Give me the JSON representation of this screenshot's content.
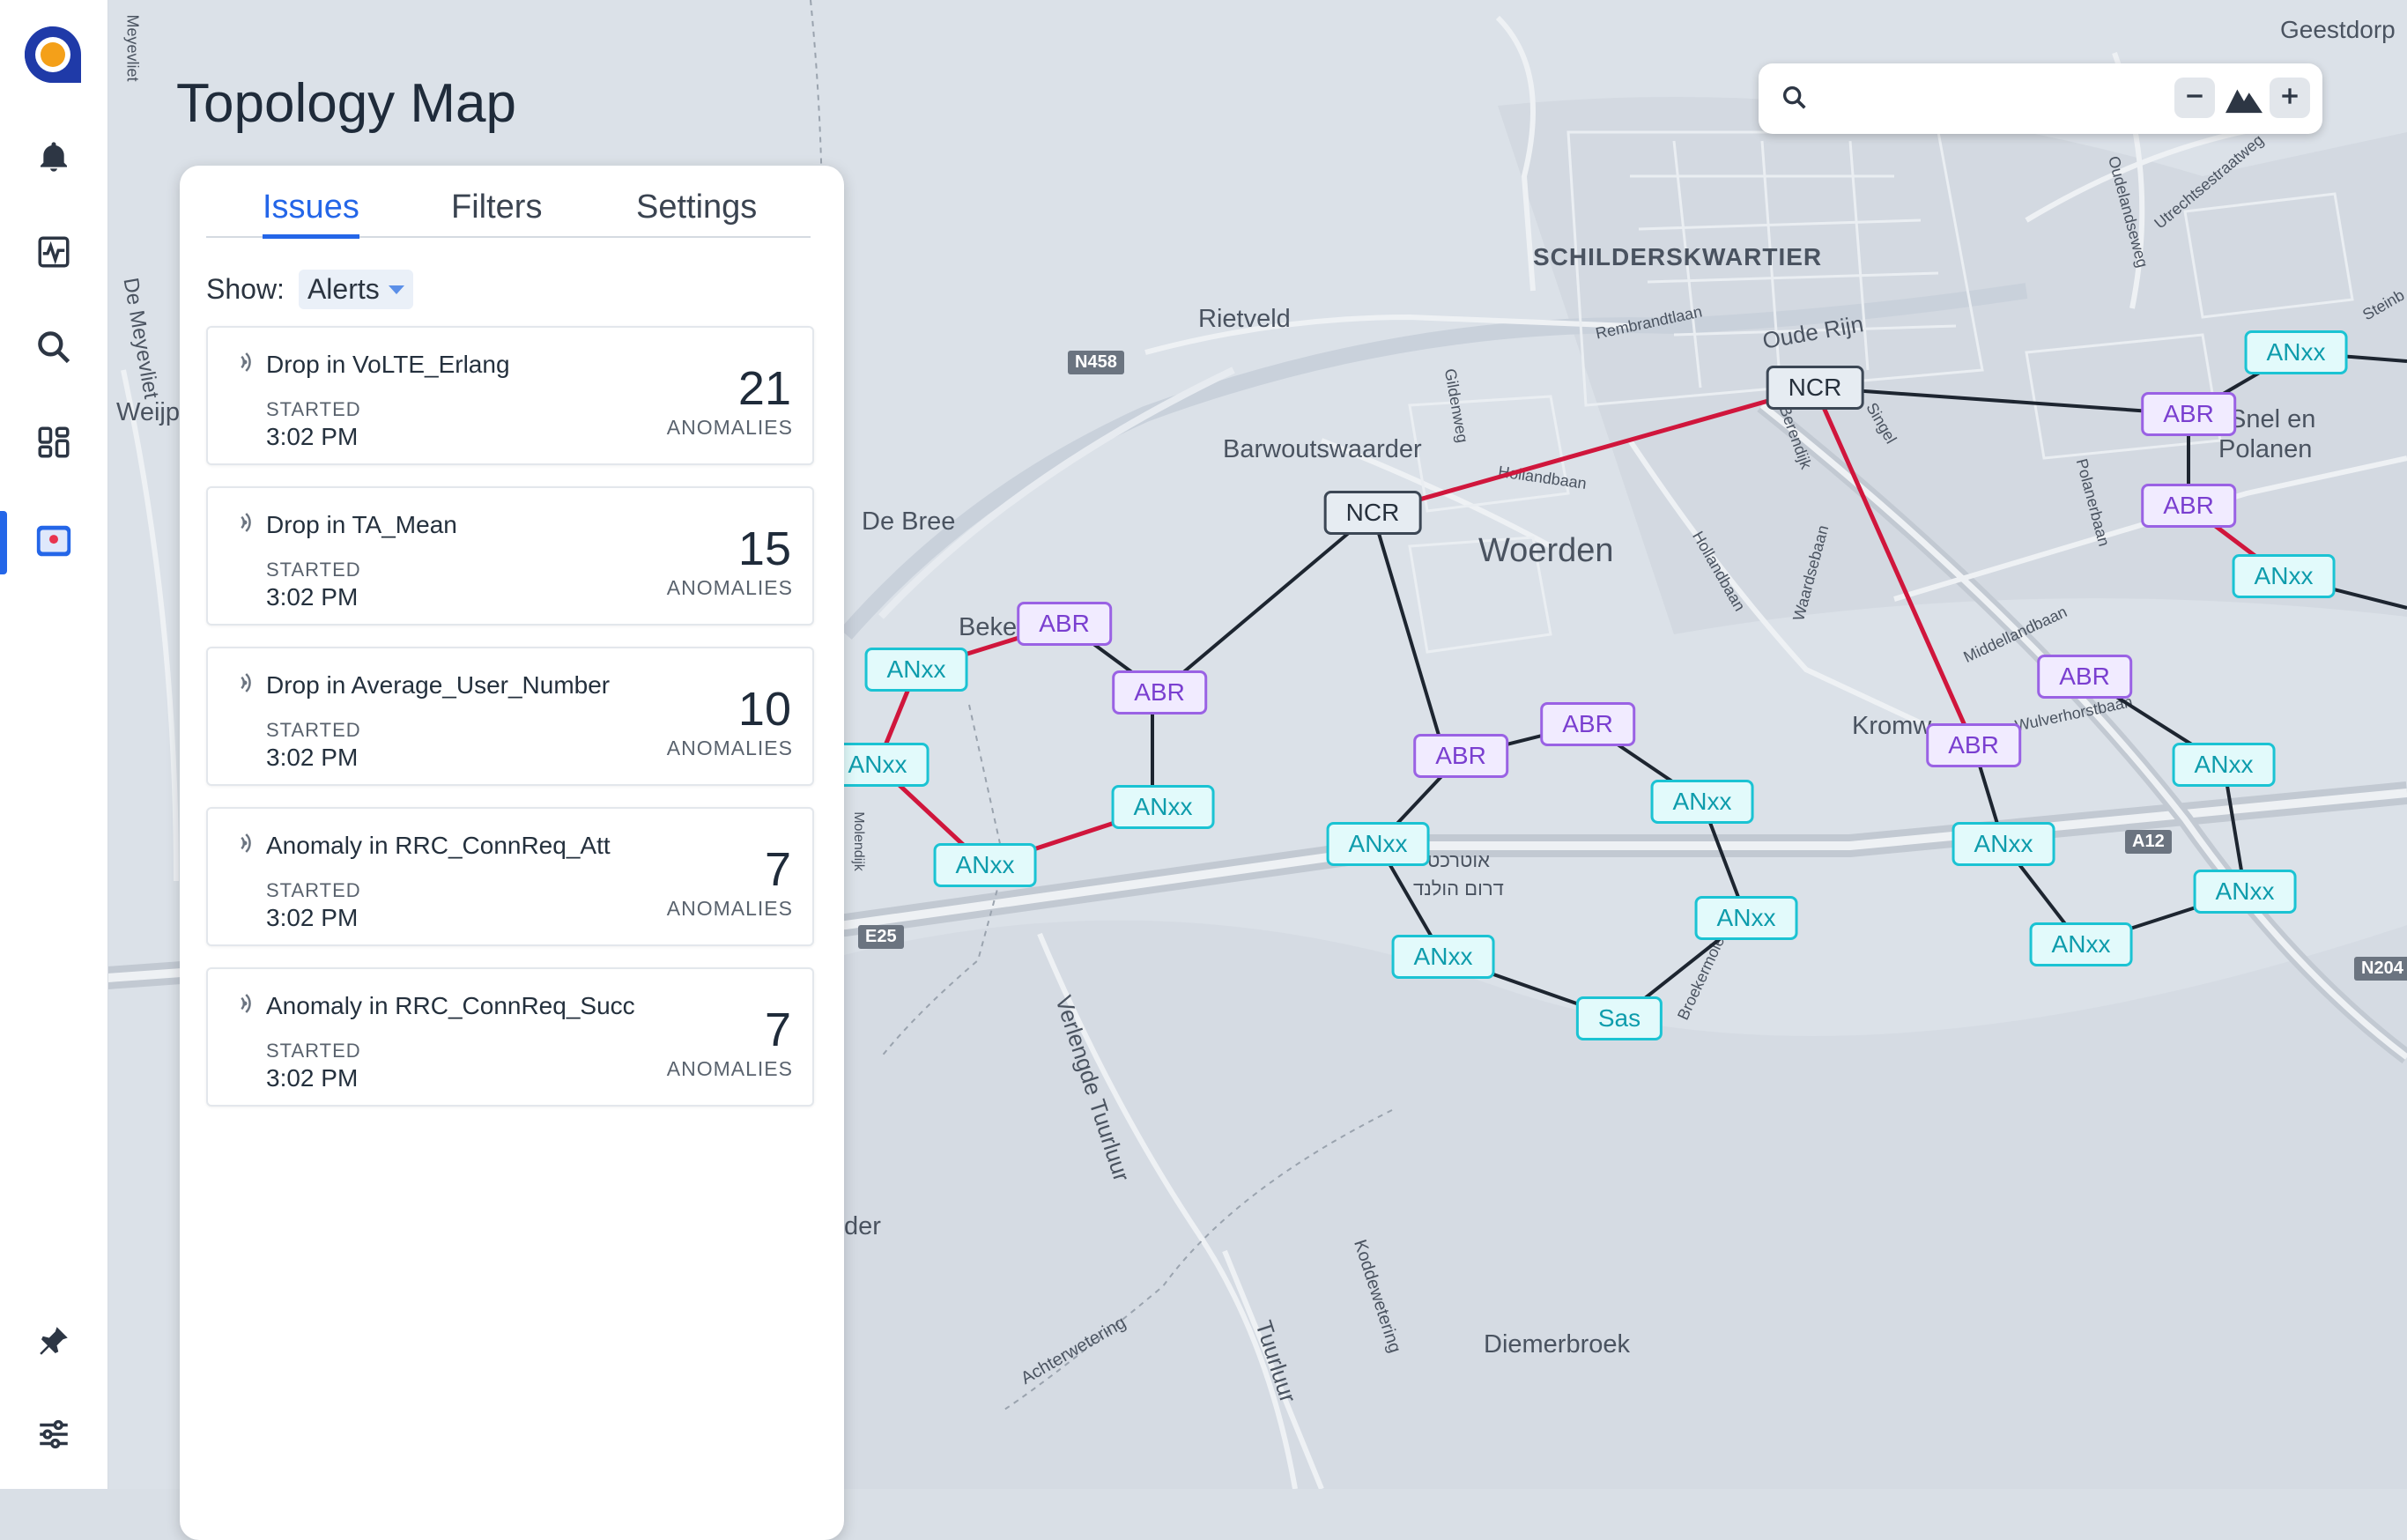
{
  "page": {
    "title": "Topology Map"
  },
  "sidebar": {
    "items": [
      {
        "name": "bell-icon"
      },
      {
        "name": "activity-icon"
      },
      {
        "name": "search-icon"
      },
      {
        "name": "dashboard-icon"
      },
      {
        "name": "map-icon",
        "active": true
      }
    ],
    "bottom": [
      {
        "name": "pin-icon"
      },
      {
        "name": "sliders-icon"
      }
    ]
  },
  "panel": {
    "tabs": [
      "Issues",
      "Filters",
      "Settings"
    ],
    "active_tab": "Issues",
    "show_label": "Show:",
    "show_value": "Alerts",
    "started_label": "STARTED",
    "count_label": "ANOMALIES",
    "issues": [
      {
        "title": "Drop in VoLTE_Erlang",
        "time": "3:02 PM",
        "count": "21"
      },
      {
        "title": "Drop in TA_Mean",
        "time": "3:02 PM",
        "count": "15"
      },
      {
        "title": "Drop in Average_User_Number",
        "time": "3:02 PM",
        "count": "10"
      },
      {
        "title": "Anomaly in RRC_ConnReq_Att",
        "time": "3:02 PM",
        "count": "7"
      },
      {
        "title": "Anomaly in RRC_ConnReq_Succ",
        "time": "3:02 PM",
        "count": "7"
      }
    ]
  },
  "search": {
    "value": "",
    "placeholder": ""
  },
  "map": {
    "labels": {
      "geestdorp": "Geestdorp",
      "schilderskwartier": "SCHILDERSKWARTIER",
      "rietveld": "Rietveld",
      "oude_rijn": "Oude Rijn",
      "barwoutswaarder": "Barwoutswaarder",
      "woerden": "Woerden",
      "de_bree": "De Bree",
      "beke": "Beke",
      "snel_en": "Snel en",
      "polanen": "Polanen",
      "kromw": "Kromw",
      "weijp": "Weijp",
      "de_meyevliet": "De Meyevliet",
      "meyevliet": "Meyevliet",
      "verlengde_tuurluur": "Verlengde Tuurluur",
      "tuurluur": "Tuurluur",
      "koddewetering": "Koddewetering",
      "achterwetering": "Achterwetering",
      "diemerbroek": "Diemerbroek",
      "der": "der",
      "rembrandtlaan": "Rembrandtlaan",
      "hollandbaan": "Hollandbaan",
      "hollandbaan2": "Hollandbaan",
      "gildenweg": "Gildenweg",
      "waardsebaan": "Waardsebaan",
      "polanerbaan": "Polanerbaan",
      "middellandbaan": "Middellandbaan",
      "wulverhorstbaan": "Wulverhorstbaan",
      "utrechtsestraatweg": "Utrechtsestraatweg",
      "oudelandseweg": "Oudelandseweg",
      "singel": "Singel",
      "berendijk": "Berendijk",
      "broekermolen": "Broekermole",
      "hebrew1": "אוטרכט",
      "hebrew2": "דרום הולנד",
      "steinb": "Steinb",
      "molendijk": "Molendijk"
    },
    "shields": {
      "n458": "N458",
      "a12": "A12",
      "e25": "E25",
      "n204": "N204"
    },
    "nodes": {
      "ncr1": "NCR",
      "ncr2": "NCR",
      "abr1": "ABR",
      "abr2": "ABR",
      "abr3": "ABR",
      "abr4": "ABR",
      "abr5": "ABR",
      "abr6": "ABR",
      "abr7": "ABR",
      "abr8": "ABR",
      "anxx1": "ANxx",
      "anxx2": "ANxx",
      "anxx3": "ANxx",
      "anxx4": "ANxx",
      "anxx5": "ANxx",
      "anxx6": "ANxx",
      "anxx7": "ANxx",
      "anxx8": "ANxx",
      "anxx9": "ANxx",
      "anxx10": "ANxx",
      "anxx11": "ANxx",
      "anxx12": "ANxx",
      "anxx13": "ANxx",
      "anxx14": "ANxx",
      "sas": "Sas"
    },
    "colors": {
      "link_normal": "#1d2530",
      "link_alert": "#d0163c",
      "anxx": "#1bc3d3",
      "abr": "#9a62e4",
      "ncr": "#3c4755"
    }
  }
}
